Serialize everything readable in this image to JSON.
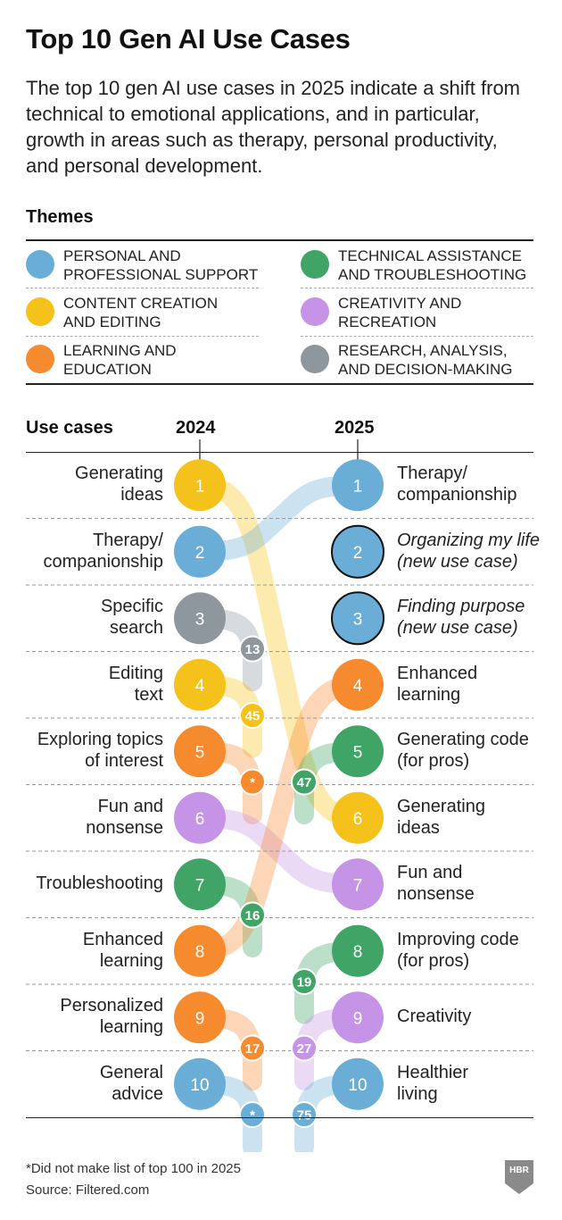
{
  "title": "Top 10 Gen AI Use Cases",
  "subtitle": "The top 10 gen AI use cases in 2025 indicate a shift from technical to emotional applications, and in particular, growth in areas such as therapy, personal productivity, and personal development.",
  "themes_heading": "Themes",
  "themes": [
    {
      "id": "personal",
      "line1": "PERSONAL AND",
      "line2": "PROFESSIONAL SUPPORT",
      "color": "#6aaed8"
    },
    {
      "id": "technical",
      "line1": "TECHNICAL ASSISTANCE",
      "line2": "AND TROUBLESHOOTING",
      "color": "#3fa466"
    },
    {
      "id": "content",
      "line1": "CONTENT CREATION",
      "line2": "AND EDITING",
      "color": "#f5c21b"
    },
    {
      "id": "creativity",
      "line1": "CREATIVITY AND",
      "line2": "RECREATION",
      "color": "#c694e6"
    },
    {
      "id": "learning",
      "line1": "LEARNING AND",
      "line2": "EDUCATION",
      "color": "#f58a2e"
    },
    {
      "id": "research",
      "line1": "RESEARCH, ANALYSIS,",
      "line2": "AND DECISION-MAKING",
      "color": "#8d979d"
    }
  ],
  "chart_data": {
    "type": "slope",
    "columns": {
      "label": "Use cases",
      "from": "2024",
      "to": "2025"
    },
    "left": [
      {
        "rank": 1,
        "lines": [
          "Generating",
          "ideas"
        ],
        "theme": "content",
        "rank2025": "6"
      },
      {
        "rank": 2,
        "lines": [
          "Therapy/",
          "companionship"
        ],
        "theme": "personal",
        "rank2025": "1"
      },
      {
        "rank": 3,
        "lines": [
          "Specific",
          "search"
        ],
        "theme": "research",
        "rank2025": "13"
      },
      {
        "rank": 4,
        "lines": [
          "Editing",
          "text"
        ],
        "theme": "content",
        "rank2025": "45"
      },
      {
        "rank": 5,
        "lines": [
          "Exploring topics",
          "of interest"
        ],
        "theme": "learning",
        "rank2025": "*"
      },
      {
        "rank": 6,
        "lines": [
          "Fun and",
          "nonsense"
        ],
        "theme": "creativity",
        "rank2025": "7"
      },
      {
        "rank": 7,
        "lines": [
          "Troubleshooting"
        ],
        "theme": "technical",
        "rank2025": "16"
      },
      {
        "rank": 8,
        "lines": [
          "Enhanced",
          "learning"
        ],
        "theme": "learning",
        "rank2025": "4"
      },
      {
        "rank": 9,
        "lines": [
          "Personalized",
          "learning"
        ],
        "theme": "learning",
        "rank2025": "17"
      },
      {
        "rank": 10,
        "lines": [
          "General",
          "advice"
        ],
        "theme": "personal",
        "rank2025": "*"
      }
    ],
    "right": [
      {
        "rank": 1,
        "lines": [
          "Therapy/",
          "companionship"
        ],
        "theme": "personal",
        "rank2024": "2",
        "new": false
      },
      {
        "rank": 2,
        "lines": [
          "Organizing my life",
          "(new use case)"
        ],
        "theme": "personal",
        "rank2024": null,
        "new": true
      },
      {
        "rank": 3,
        "lines": [
          "Finding purpose",
          "(new use case)"
        ],
        "theme": "personal",
        "rank2024": null,
        "new": true
      },
      {
        "rank": 4,
        "lines": [
          "Enhanced",
          "learning"
        ],
        "theme": "learning",
        "rank2024": "8",
        "new": false
      },
      {
        "rank": 5,
        "lines": [
          "Generating code",
          "(for pros)"
        ],
        "theme": "technical",
        "rank2024": "47",
        "new": false
      },
      {
        "rank": 6,
        "lines": [
          "Generating",
          "ideas"
        ],
        "theme": "content",
        "rank2024": "1",
        "new": false
      },
      {
        "rank": 7,
        "lines": [
          "Fun and",
          "nonsense"
        ],
        "theme": "creativity",
        "rank2024": "6",
        "new": false
      },
      {
        "rank": 8,
        "lines": [
          "Improving code",
          "(for pros)"
        ],
        "theme": "technical",
        "rank2024": "19",
        "new": false
      },
      {
        "rank": 9,
        "lines": [
          "Creativity"
        ],
        "theme": "creativity",
        "rank2024": "27",
        "new": false
      },
      {
        "rank": 10,
        "lines": [
          "Healthier",
          "living"
        ],
        "theme": "personal",
        "rank2024": "75",
        "new": false
      }
    ]
  },
  "footnote": "*Did not make list of top 100 in 2025",
  "source": "Source: Filtered.com",
  "logo": "HBR"
}
